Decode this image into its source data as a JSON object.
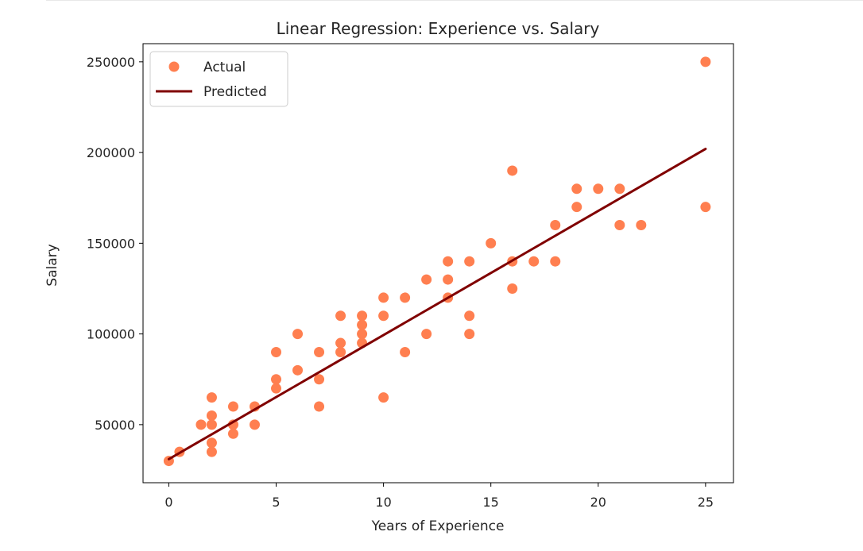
{
  "chart_data": {
    "type": "scatter",
    "title": "Linear Regression: Experience vs. Salary",
    "xlabel": "Years of Experience",
    "ylabel": "Salary",
    "xlim": [
      -1.2,
      26.3
    ],
    "ylim": [
      18000,
      260000
    ],
    "xticks": [
      "0",
      "5",
      "10",
      "15",
      "20",
      "25"
    ],
    "xtick_values": [
      0,
      5,
      10,
      15,
      20,
      25
    ],
    "yticks": [
      "50000",
      "100000",
      "150000",
      "200000",
      "250000"
    ],
    "ytick_values": [
      50000,
      100000,
      150000,
      200000,
      250000
    ],
    "grid": false,
    "legend_placement": "upper-left",
    "series": [
      {
        "name": "Actual",
        "kind": "scatter",
        "color": "#FF7F50",
        "points": [
          [
            0,
            30000
          ],
          [
            0.5,
            35000
          ],
          [
            1.5,
            50000
          ],
          [
            2,
            65000
          ],
          [
            2,
            55000
          ],
          [
            2,
            50000
          ],
          [
            2,
            40000
          ],
          [
            2,
            35000
          ],
          [
            3,
            60000
          ],
          [
            3,
            50000
          ],
          [
            3,
            45000
          ],
          [
            4,
            60000
          ],
          [
            4,
            50000
          ],
          [
            5,
            90000
          ],
          [
            5,
            75000
          ],
          [
            5,
            70000
          ],
          [
            6,
            100000
          ],
          [
            6,
            80000
          ],
          [
            7,
            90000
          ],
          [
            7,
            75000
          ],
          [
            7,
            60000
          ],
          [
            8,
            110000
          ],
          [
            8,
            95000
          ],
          [
            8,
            90000
          ],
          [
            9,
            110000
          ],
          [
            9,
            105000
          ],
          [
            9,
            100000
          ],
          [
            9,
            95000
          ],
          [
            10,
            120000
          ],
          [
            10,
            110000
          ],
          [
            10,
            65000
          ],
          [
            11,
            120000
          ],
          [
            11,
            90000
          ],
          [
            12,
            130000
          ],
          [
            12,
            100000
          ],
          [
            13,
            140000
          ],
          [
            13,
            130000
          ],
          [
            13,
            120000
          ],
          [
            14,
            140000
          ],
          [
            14,
            110000
          ],
          [
            14,
            100000
          ],
          [
            15,
            150000
          ],
          [
            16,
            190000
          ],
          [
            16,
            140000
          ],
          [
            16,
            125000
          ],
          [
            17,
            140000
          ],
          [
            18,
            160000
          ],
          [
            18,
            140000
          ],
          [
            19,
            180000
          ],
          [
            19,
            170000
          ],
          [
            20,
            180000
          ],
          [
            21,
            180000
          ],
          [
            21,
            160000
          ],
          [
            22,
            160000
          ],
          [
            25,
            250000
          ],
          [
            25,
            170000
          ]
        ]
      },
      {
        "name": "Predicted",
        "kind": "line",
        "color": "#800000",
        "points": [
          [
            0,
            31000
          ],
          [
            25,
            202000
          ]
        ]
      }
    ]
  }
}
